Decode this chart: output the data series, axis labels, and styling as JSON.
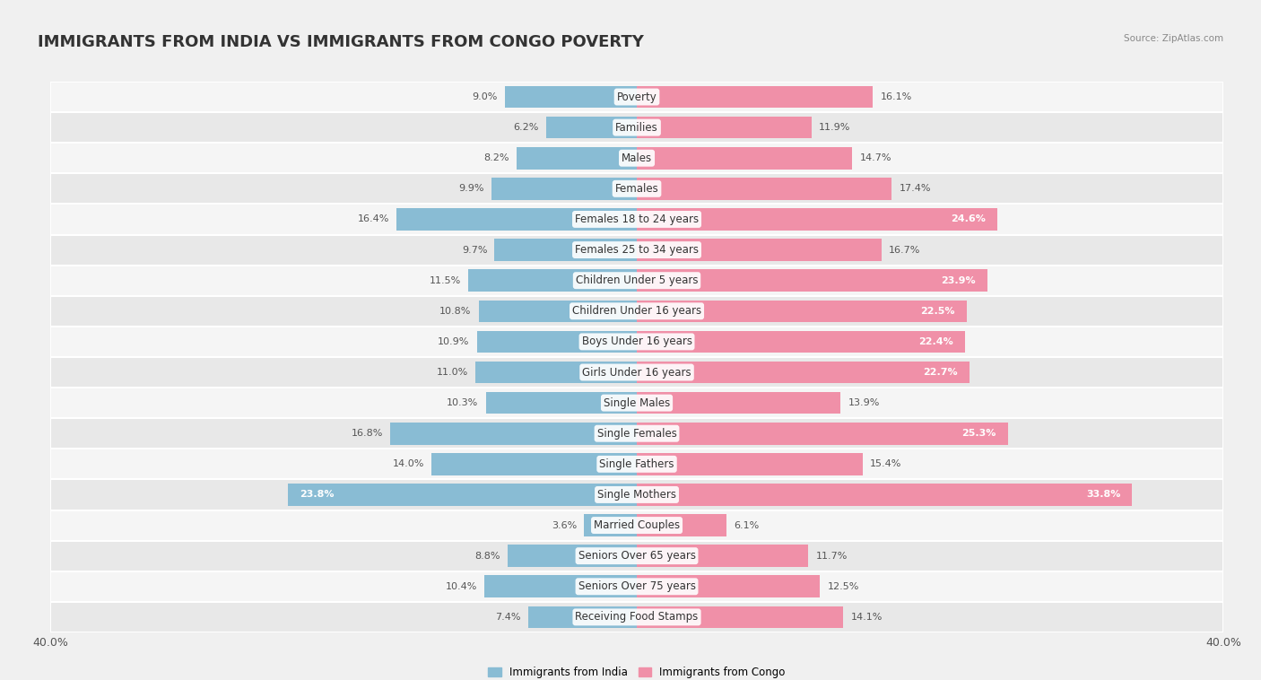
{
  "title": "IMMIGRANTS FROM INDIA VS IMMIGRANTS FROM CONGO POVERTY",
  "source": "Source: ZipAtlas.com",
  "categories": [
    "Poverty",
    "Families",
    "Males",
    "Females",
    "Females 18 to 24 years",
    "Females 25 to 34 years",
    "Children Under 5 years",
    "Children Under 16 years",
    "Boys Under 16 years",
    "Girls Under 16 years",
    "Single Males",
    "Single Females",
    "Single Fathers",
    "Single Mothers",
    "Married Couples",
    "Seniors Over 65 years",
    "Seniors Over 75 years",
    "Receiving Food Stamps"
  ],
  "india_values": [
    9.0,
    6.2,
    8.2,
    9.9,
    16.4,
    9.7,
    11.5,
    10.8,
    10.9,
    11.0,
    10.3,
    16.8,
    14.0,
    23.8,
    3.6,
    8.8,
    10.4,
    7.4
  ],
  "congo_values": [
    16.1,
    11.9,
    14.7,
    17.4,
    24.6,
    16.7,
    23.9,
    22.5,
    22.4,
    22.7,
    13.9,
    25.3,
    15.4,
    33.8,
    6.1,
    11.7,
    12.5,
    14.1
  ],
  "india_color": "#89bcd4",
  "congo_color": "#f090a8",
  "india_label": "Immigrants from India",
  "congo_label": "Immigrants from Congo",
  "axis_limit": 40.0,
  "bg_row_odd": "#f5f5f5",
  "bg_row_even": "#e8e8e8",
  "title_fontsize": 13,
  "label_fontsize": 8.5,
  "value_fontsize": 8,
  "axis_label_fontsize": 9,
  "inside_threshold_india": 20,
  "inside_threshold_congo": 20
}
